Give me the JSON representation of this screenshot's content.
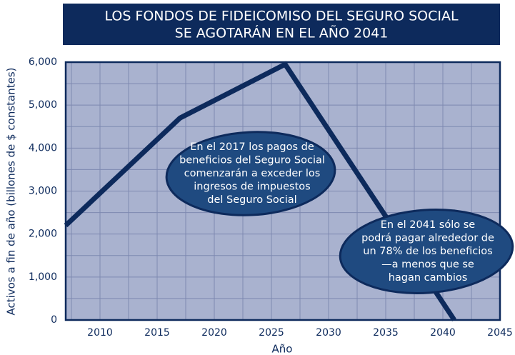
{
  "chart_data": {
    "type": "line",
    "title": [
      "LOS FONDOS DE FIDEICOMISO DEL SEGURO SOCIAL",
      "SE AGOTARÁN EN EL AÑO 2041"
    ],
    "x_label": "Año",
    "y_label": "Activos a fin de año (billones de $ constantes)",
    "x": [
      2007,
      2017,
      2026.2,
      2041
    ],
    "series": [
      {
        "name": "Activos",
        "color": "#0d2a5c",
        "values": [
          2200,
          4700,
          5950,
          0
        ]
      }
    ],
    "xlim": [
      2007,
      2045
    ],
    "xticks": [
      2010,
      2015,
      2020,
      2025,
      2030,
      2035,
      2040,
      2045
    ],
    "ylim": [
      0,
      6000
    ],
    "yticks": [
      0,
      {
        "value": 1000,
        "label": "1,000"
      },
      {
        "value": 2000,
        "label": "2,000"
      },
      {
        "value": 3000,
        "label": "3,000"
      },
      {
        "value": 4000,
        "label": "4,000"
      },
      {
        "value": 5000,
        "label": "5,000"
      },
      {
        "value": 6000,
        "label": "6,000"
      }
    ],
    "grid": true,
    "annotations": [
      [
        "En el 2017 los pagos de",
        "beneficios del Seguro Social",
        "comenzarán a exceder los",
        "ingresos de impuestos",
        "del Seguro Social"
      ],
      [
        "En el 2041 sólo se",
        "podrá pagar alrededor de",
        "un 78% de los beneficios",
        "—a menos que se",
        "hagan cambios"
      ]
    ]
  }
}
